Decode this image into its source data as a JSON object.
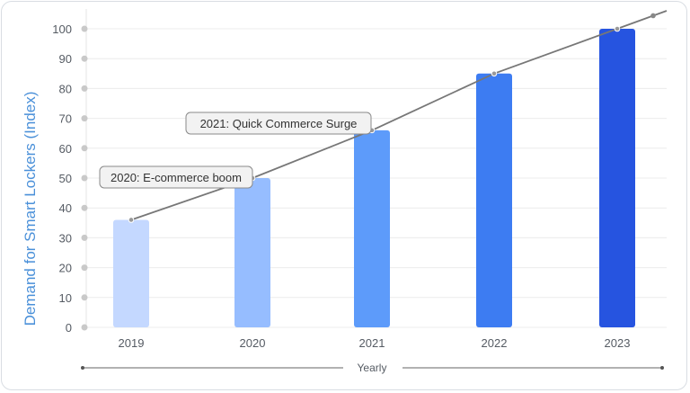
{
  "chart_data": {
    "type": "bar",
    "categories": [
      "2019",
      "2020",
      "2021",
      "2022",
      "2023"
    ],
    "values": [
      36,
      50,
      66,
      85,
      100
    ],
    "colors": [
      "#c4d8ff",
      "#96bdff",
      "#5d9bfa",
      "#3d7cf2",
      "#2654e0"
    ],
    "trend_line": {
      "color": "#777777",
      "points": [
        {
          "x": "2019",
          "y": 36
        },
        {
          "x": "2020",
          "y": 50
        },
        {
          "x": "2021",
          "y": 66
        },
        {
          "x": "2022",
          "y": 85
        },
        {
          "x": "2023",
          "y": 100
        }
      ]
    },
    "ylabel": "Demand for Smart Lockers (Index)",
    "xlabel": "Yearly",
    "ylim": [
      0,
      100
    ],
    "yticks": [
      0,
      10,
      20,
      30,
      40,
      50,
      60,
      70,
      80,
      90,
      100
    ],
    "grid": true,
    "annotations": [
      {
        "text": "2020: E-commerce boom",
        "x": "2020",
        "y": 50
      },
      {
        "text": "2021: Quick Commerce Surge",
        "x": "2021",
        "y": 66
      }
    ]
  }
}
